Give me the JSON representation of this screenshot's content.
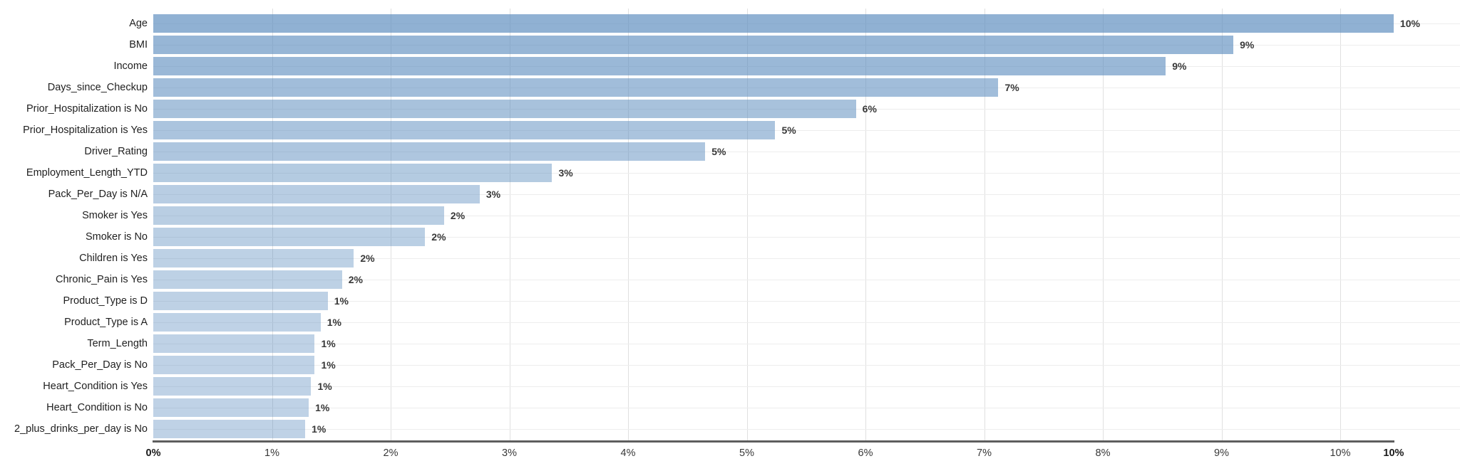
{
  "chart_data": {
    "type": "bar",
    "orientation": "horizontal",
    "title": "",
    "xlabel": "",
    "ylabel": "",
    "legend": null,
    "grid": true,
    "bar_base_color": "#5b8cbe",
    "axis_line_color": "#5e5e5e",
    "x_axis": {
      "range": [
        0,
        10.45
      ],
      "tick_values": [
        0,
        1,
        2,
        3,
        4,
        5,
        6,
        7,
        8,
        9,
        10
      ],
      "tick_labels": [
        "0%",
        "1%",
        "2%",
        "3%",
        "4%",
        "5%",
        "6%",
        "7%",
        "8%",
        "9%",
        "10%"
      ],
      "end_label": "10%",
      "end_value": 10.45
    },
    "categories": [
      "Age",
      "BMI",
      "Income",
      "Days_since_Checkup",
      "Prior_Hospitalization is No",
      "Prior_Hospitalization is Yes",
      "Driver_Rating",
      "Employment_Length_YTD",
      "Pack_Per_Day is N/A",
      "Smoker is Yes",
      "Smoker is No",
      "Children is Yes",
      "Chronic_Pain is Yes",
      "Product_Type is D",
      "Product_Type is A",
      "Term_Length",
      "Pack_Per_Day is No",
      "Heart_Condition is Yes",
      "Heart_Condition is No",
      "2_plus_drinks_per_day is No"
    ],
    "values": [
      10.45,
      9.1,
      8.53,
      7.12,
      5.92,
      5.24,
      4.65,
      3.36,
      2.75,
      2.45,
      2.29,
      1.69,
      1.59,
      1.47,
      1.41,
      1.36,
      1.36,
      1.33,
      1.31,
      1.28
    ],
    "value_labels": [
      "10%",
      "9%",
      "9%",
      "7%",
      "6%",
      "5%",
      "5%",
      "3%",
      "3%",
      "2%",
      "2%",
      "2%",
      "2%",
      "1%",
      "1%",
      "1%",
      "1%",
      "1%",
      "1%",
      "1%"
    ]
  }
}
